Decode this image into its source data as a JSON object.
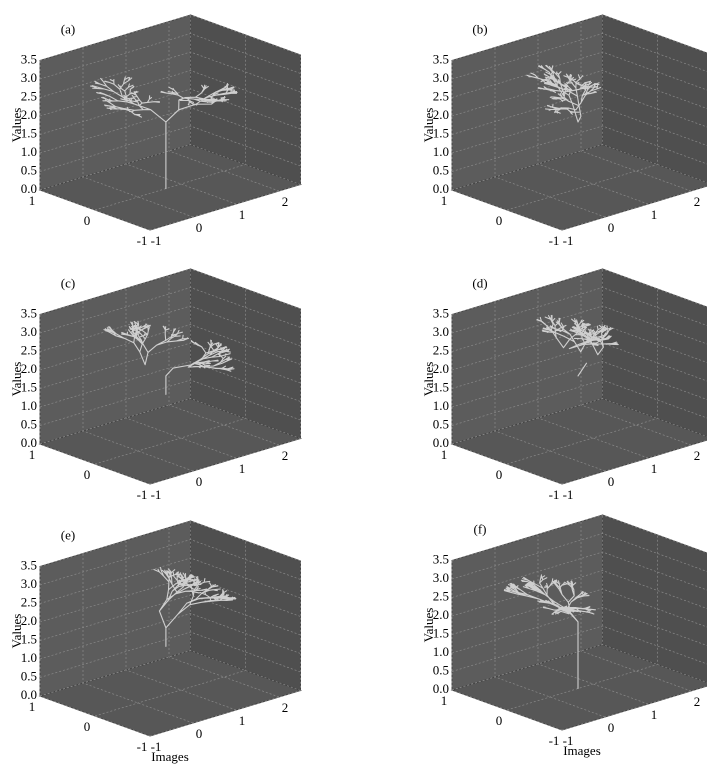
{
  "chart_data": [
    {
      "type": "tree3d",
      "label": "(a)",
      "zlabel": "Values",
      "zlim": [
        0,
        3.5
      ],
      "zticks": [
        {
          "value": 0,
          "label": "0.0"
        },
        {
          "value": 0.5,
          "label": "0.5"
        },
        {
          "value": 1,
          "label": "1.0"
        },
        {
          "value": 1.5,
          "label": "1.5"
        },
        {
          "value": 2,
          "label": "2.0"
        },
        {
          "value": 2.5,
          "label": "2.5"
        },
        {
          "value": 3,
          "label": "3.0"
        },
        {
          "value": 3.5,
          "label": "3.5"
        }
      ],
      "xlim": [
        -1,
        2.5
      ],
      "xticks": [
        -1,
        0,
        1,
        2
      ],
      "ylim": [
        -1,
        1
      ],
      "yticks": [
        1,
        0,
        -1
      ]
    },
    {
      "type": "tree3d",
      "label": "(b)",
      "zlabel": "Values",
      "zlim": [
        0,
        3.5
      ],
      "zticks": [
        {
          "value": 0,
          "label": "0.0"
        },
        {
          "value": 0.5,
          "label": "0.5"
        },
        {
          "value": 1,
          "label": "1.0"
        },
        {
          "value": 1.5,
          "label": "1.5"
        },
        {
          "value": 2,
          "label": "2.0"
        },
        {
          "value": 2.5,
          "label": "2.5"
        },
        {
          "value": 3,
          "label": "3.0"
        },
        {
          "value": 3.5,
          "label": "3.5"
        }
      ],
      "xlim": [
        -1,
        2.5
      ],
      "xticks": [
        -1,
        0,
        1,
        2
      ],
      "ylim": [
        -1,
        1
      ],
      "yticks": [
        1,
        0,
        -1
      ]
    },
    {
      "type": "tree3d",
      "label": "(c)",
      "zlabel": "Values",
      "zlim": [
        0,
        3.5
      ],
      "zticks": [
        {
          "value": 0,
          "label": "0.0"
        },
        {
          "value": 0.5,
          "label": "0.5"
        },
        {
          "value": 1,
          "label": "1.0"
        },
        {
          "value": 1.5,
          "label": "1.5"
        },
        {
          "value": 2,
          "label": "2.0"
        },
        {
          "value": 2.5,
          "label": "2.5"
        },
        {
          "value": 3,
          "label": "3.0"
        },
        {
          "value": 3.5,
          "label": "3.5"
        }
      ],
      "xlim": [
        -1,
        2.5
      ],
      "xticks": [
        -1,
        0,
        1,
        2
      ],
      "ylim": [
        -1,
        1
      ],
      "yticks": [
        1,
        0,
        -1
      ]
    },
    {
      "type": "tree3d",
      "label": "(d)",
      "zlabel": "Values",
      "zlim": [
        0,
        3.5
      ],
      "zticks": [
        {
          "value": 0,
          "label": "0.0"
        },
        {
          "value": 0.5,
          "label": "0.5"
        },
        {
          "value": 1,
          "label": "1.0"
        },
        {
          "value": 1.5,
          "label": "1.5"
        },
        {
          "value": 2,
          "label": "2.0"
        },
        {
          "value": 2.5,
          "label": "2.5"
        },
        {
          "value": 3,
          "label": "3.0"
        },
        {
          "value": 3.5,
          "label": "3.5"
        }
      ],
      "xlim": [
        -1,
        2.5
      ],
      "xticks": [
        -1,
        0,
        1,
        2
      ],
      "ylim": [
        -1,
        1
      ],
      "yticks": [
        1,
        0,
        -1
      ]
    },
    {
      "type": "tree3d",
      "label": "(e)",
      "zlabel": "Values",
      "xlabel": "Images",
      "zlim": [
        0,
        3.5
      ],
      "zticks": [
        {
          "value": 0,
          "label": "0.0"
        },
        {
          "value": 0.5,
          "label": "0.5"
        },
        {
          "value": 1,
          "label": "1.0"
        },
        {
          "value": 1.5,
          "label": "1.5"
        },
        {
          "value": 2,
          "label": "2.0"
        },
        {
          "value": 2.5,
          "label": "2.5"
        },
        {
          "value": 3,
          "label": "3.0"
        },
        {
          "value": 3.5,
          "label": "3.5"
        }
      ],
      "xlim": [
        -1,
        2.5
      ],
      "xticks": [
        -1,
        0,
        1,
        2
      ],
      "ylim": [
        -1,
        1
      ],
      "yticks": [
        1,
        0,
        -1
      ]
    },
    {
      "type": "tree3d",
      "label": "(f)",
      "zlabel": "Values",
      "xlabel": "Images",
      "zlim": [
        0,
        3.5
      ],
      "zticks": [
        {
          "value": 0,
          "label": "0.0"
        },
        {
          "value": 0.5,
          "label": "0.5"
        },
        {
          "value": 1,
          "label": "1.0"
        },
        {
          "value": 1.5,
          "label": "1.5"
        },
        {
          "value": 2,
          "label": "2.0"
        },
        {
          "value": 2.5,
          "label": "2.5"
        },
        {
          "value": 3,
          "label": "3.0"
        },
        {
          "value": 3.5,
          "label": "3.5"
        }
      ],
      "xlim": [
        -1,
        2.5
      ],
      "xticks": [
        -1,
        0,
        1,
        2
      ],
      "ylim": [
        -1,
        1
      ],
      "yticks": [
        1,
        0,
        -1
      ]
    }
  ]
}
